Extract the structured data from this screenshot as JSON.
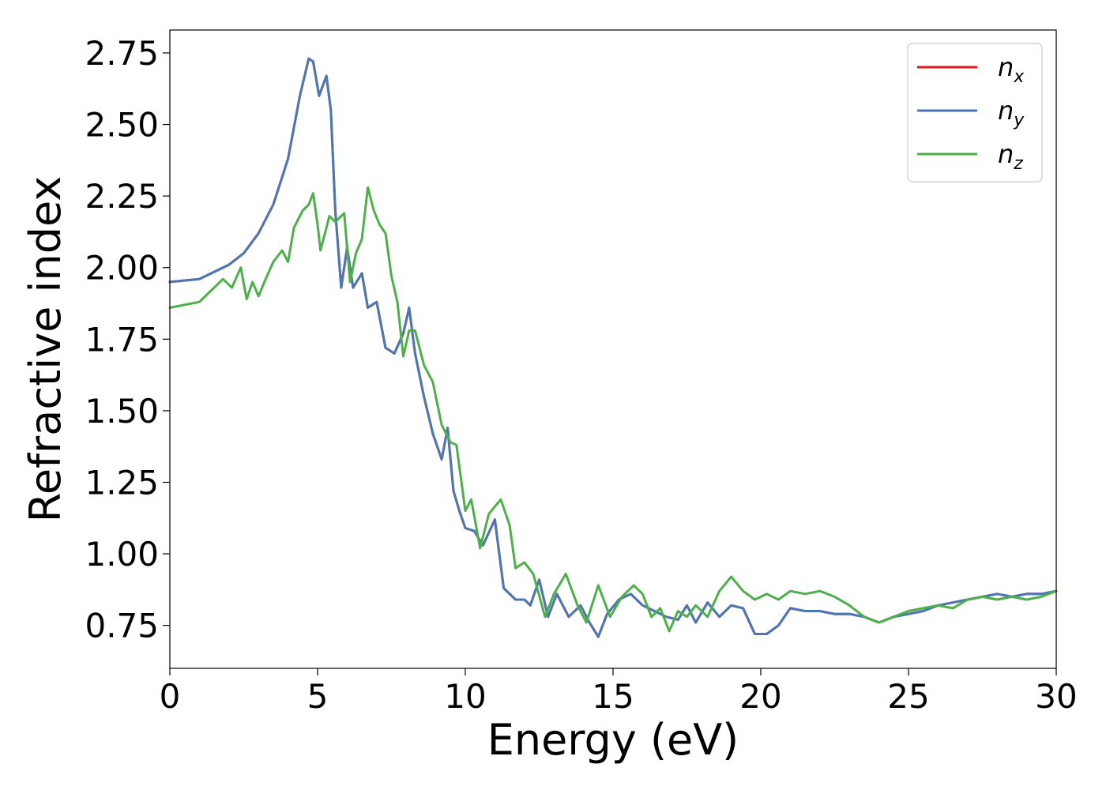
{
  "chart_data": {
    "type": "line",
    "xlabel": "Energy (eV)",
    "ylabel": "Refractive index",
    "xlim": [
      0,
      30
    ],
    "ylim": [
      0.6,
      2.83
    ],
    "xticks": [
      0,
      5,
      10,
      15,
      20,
      25,
      30
    ],
    "xtick_labels": [
      "0",
      "5",
      "10",
      "15",
      "20",
      "25",
      "30"
    ],
    "yticks": [
      0.75,
      1.0,
      1.25,
      1.5,
      1.75,
      2.0,
      2.25,
      2.5,
      2.75
    ],
    "ytick_labels": [
      "0.75",
      "1.00",
      "1.25",
      "1.50",
      "1.75",
      "2.00",
      "2.25",
      "2.50",
      "2.75"
    ],
    "grid": false,
    "legend_position": "top-right",
    "series": [
      {
        "name": "n_x",
        "label_base": "n",
        "label_sub": "x",
        "color": "#e41a1c",
        "x": [
          0,
          1,
          2,
          2.5,
          3,
          3.5,
          4,
          4.4,
          4.7,
          4.85,
          5.05,
          5.3,
          5.45,
          5.6,
          5.8,
          6.0,
          6.2,
          6.5,
          6.7,
          7.0,
          7.3,
          7.6,
          7.9,
          8.1,
          8.3,
          8.6,
          8.9,
          9.2,
          9.4,
          9.6,
          9.8,
          10.0,
          10.3,
          10.6,
          11.0,
          11.3,
          11.7,
          12.0,
          12.2,
          12.5,
          12.8,
          13.1,
          13.5,
          13.9,
          14.2,
          14.5,
          14.8,
          15.2,
          15.6,
          16.0,
          16.4,
          16.8,
          17.2,
          17.5,
          17.8,
          18.2,
          18.6,
          19.0,
          19.4,
          19.8,
          20.2,
          20.6,
          21.0,
          21.5,
          22.0,
          22.5,
          23.0,
          23.5,
          24.0,
          24.5,
          25.0,
          25.5,
          26.0,
          26.5,
          27.0,
          27.5,
          28.0,
          28.5,
          29.0,
          29.5,
          30
        ],
        "y": [
          1.95,
          1.96,
          2.01,
          2.05,
          2.12,
          2.22,
          2.38,
          2.6,
          2.73,
          2.72,
          2.6,
          2.67,
          2.55,
          2.2,
          1.93,
          2.07,
          1.93,
          1.98,
          1.86,
          1.88,
          1.72,
          1.7,
          1.77,
          1.86,
          1.7,
          1.55,
          1.42,
          1.33,
          1.44,
          1.22,
          1.15,
          1.09,
          1.08,
          1.03,
          1.12,
          0.88,
          0.84,
          0.84,
          0.82,
          0.91,
          0.78,
          0.86,
          0.78,
          0.82,
          0.76,
          0.71,
          0.79,
          0.84,
          0.86,
          0.82,
          0.8,
          0.78,
          0.77,
          0.82,
          0.76,
          0.83,
          0.78,
          0.82,
          0.81,
          0.72,
          0.72,
          0.75,
          0.81,
          0.8,
          0.8,
          0.79,
          0.79,
          0.78,
          0.76,
          0.78,
          0.79,
          0.8,
          0.82,
          0.83,
          0.84,
          0.85,
          0.86,
          0.85,
          0.86,
          0.86,
          0.87
        ]
      },
      {
        "name": "n_y",
        "label_base": "n",
        "label_sub": "y",
        "color": "#4a78b4",
        "x": [
          0,
          1,
          2,
          2.5,
          3,
          3.5,
          4,
          4.4,
          4.7,
          4.85,
          5.05,
          5.3,
          5.45,
          5.6,
          5.8,
          6.0,
          6.2,
          6.5,
          6.7,
          7.0,
          7.3,
          7.6,
          7.9,
          8.1,
          8.3,
          8.6,
          8.9,
          9.2,
          9.4,
          9.6,
          9.8,
          10.0,
          10.3,
          10.6,
          11.0,
          11.3,
          11.7,
          12.0,
          12.2,
          12.5,
          12.8,
          13.1,
          13.5,
          13.9,
          14.2,
          14.5,
          14.8,
          15.2,
          15.6,
          16.0,
          16.4,
          16.8,
          17.2,
          17.5,
          17.8,
          18.2,
          18.6,
          19.0,
          19.4,
          19.8,
          20.2,
          20.6,
          21.0,
          21.5,
          22.0,
          22.5,
          23.0,
          23.5,
          24.0,
          24.5,
          25.0,
          25.5,
          26.0,
          26.5,
          27.0,
          27.5,
          28.0,
          28.5,
          29.0,
          29.5,
          30
        ],
        "y": [
          1.95,
          1.96,
          2.01,
          2.05,
          2.12,
          2.22,
          2.38,
          2.6,
          2.73,
          2.72,
          2.6,
          2.67,
          2.55,
          2.2,
          1.93,
          2.07,
          1.93,
          1.98,
          1.86,
          1.88,
          1.72,
          1.7,
          1.77,
          1.86,
          1.7,
          1.55,
          1.42,
          1.33,
          1.44,
          1.22,
          1.15,
          1.09,
          1.08,
          1.03,
          1.12,
          0.88,
          0.84,
          0.84,
          0.82,
          0.91,
          0.78,
          0.86,
          0.78,
          0.82,
          0.76,
          0.71,
          0.79,
          0.84,
          0.86,
          0.82,
          0.8,
          0.78,
          0.77,
          0.82,
          0.76,
          0.83,
          0.78,
          0.82,
          0.81,
          0.72,
          0.72,
          0.75,
          0.81,
          0.8,
          0.8,
          0.79,
          0.79,
          0.78,
          0.76,
          0.78,
          0.79,
          0.8,
          0.82,
          0.83,
          0.84,
          0.85,
          0.86,
          0.85,
          0.86,
          0.86,
          0.87
        ]
      },
      {
        "name": "n_z",
        "label_base": "n",
        "label_sub": "z",
        "color": "#4daf4a",
        "x": [
          0,
          1,
          1.8,
          2.1,
          2.4,
          2.6,
          2.8,
          3.0,
          3.2,
          3.5,
          3.8,
          4.0,
          4.2,
          4.5,
          4.7,
          4.85,
          5.0,
          5.1,
          5.4,
          5.6,
          5.9,
          6.1,
          6.3,
          6.5,
          6.7,
          6.9,
          7.1,
          7.3,
          7.5,
          7.7,
          7.9,
          8.1,
          8.3,
          8.6,
          8.9,
          9.2,
          9.5,
          9.7,
          10.0,
          10.2,
          10.5,
          10.8,
          11.2,
          11.5,
          11.7,
          12.0,
          12.3,
          12.7,
          13.0,
          13.4,
          13.8,
          14.1,
          14.5,
          14.9,
          15.3,
          15.7,
          16.0,
          16.3,
          16.6,
          16.9,
          17.2,
          17.5,
          17.8,
          18.2,
          18.6,
          19.0,
          19.4,
          19.8,
          20.2,
          20.6,
          21.0,
          21.5,
          22.0,
          22.5,
          23.0,
          23.5,
          24.0,
          24.5,
          25.0,
          25.5,
          26.0,
          26.5,
          27.0,
          27.5,
          28.0,
          28.5,
          29.0,
          29.5,
          30
        ],
        "y": [
          1.86,
          1.88,
          1.96,
          1.93,
          2.0,
          1.89,
          1.95,
          1.9,
          1.95,
          2.02,
          2.06,
          2.02,
          2.14,
          2.2,
          2.22,
          2.26,
          2.15,
          2.06,
          2.18,
          2.16,
          2.19,
          1.95,
          2.05,
          2.1,
          2.28,
          2.2,
          2.15,
          2.12,
          1.97,
          1.88,
          1.69,
          1.78,
          1.78,
          1.66,
          1.6,
          1.45,
          1.39,
          1.38,
          1.15,
          1.19,
          1.02,
          1.14,
          1.19,
          1.1,
          0.95,
          0.97,
          0.93,
          0.78,
          0.86,
          0.93,
          0.82,
          0.76,
          0.89,
          0.78,
          0.85,
          0.89,
          0.86,
          0.78,
          0.81,
          0.73,
          0.8,
          0.78,
          0.82,
          0.78,
          0.87,
          0.92,
          0.87,
          0.84,
          0.86,
          0.84,
          0.87,
          0.86,
          0.87,
          0.85,
          0.82,
          0.78,
          0.76,
          0.78,
          0.8,
          0.81,
          0.82,
          0.81,
          0.84,
          0.85,
          0.84,
          0.85,
          0.84,
          0.85,
          0.87
        ]
      }
    ]
  }
}
